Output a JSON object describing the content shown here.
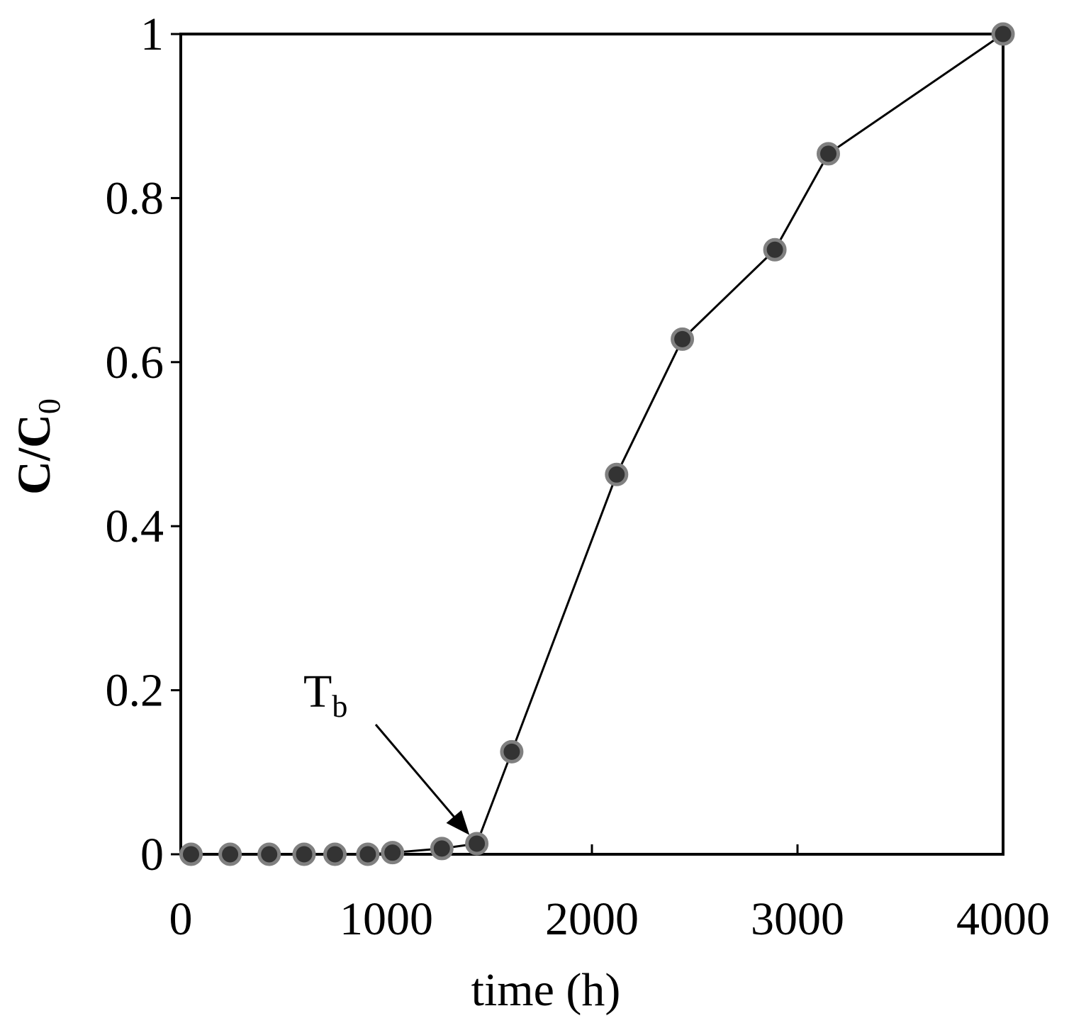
{
  "chart_data": {
    "type": "line",
    "title": "",
    "xlabel": "time (h)",
    "ylabel": {
      "main": "C/C",
      "subscript": "0"
    },
    "xlim": [
      0,
      4000
    ],
    "ylim": [
      0,
      1
    ],
    "xticks": [
      0,
      1000,
      2000,
      3000,
      4000
    ],
    "yticks": [
      0,
      0.2,
      0.4,
      0.6,
      0.8,
      1
    ],
    "x_tick_labels": [
      "0",
      "1000",
      "2000",
      "3000",
      "4000"
    ],
    "y_tick_labels": [
      "0",
      "0.2",
      "0.4",
      "0.6",
      "0.8",
      "1"
    ],
    "grid": false,
    "legend": "none",
    "series": [
      {
        "x": [
          50,
          240,
          430,
          600,
          750,
          910,
          1030,
          1270,
          1440,
          1610,
          2120,
          2440,
          2890,
          3150,
          4000
        ],
        "y": [
          0,
          0,
          0,
          0,
          0,
          0,
          0.002,
          0.007,
          0.013,
          0.125,
          0.463,
          0.628,
          0.737,
          0.854,
          1.0
        ]
      }
    ],
    "annotation": {
      "text": "T",
      "subscript": "b",
      "points_to": {
        "x": 1440,
        "y": 0.013
      }
    },
    "colors": {
      "marker_fill": "#333333",
      "marker_stroke": "#808080",
      "line": "#000000"
    }
  }
}
